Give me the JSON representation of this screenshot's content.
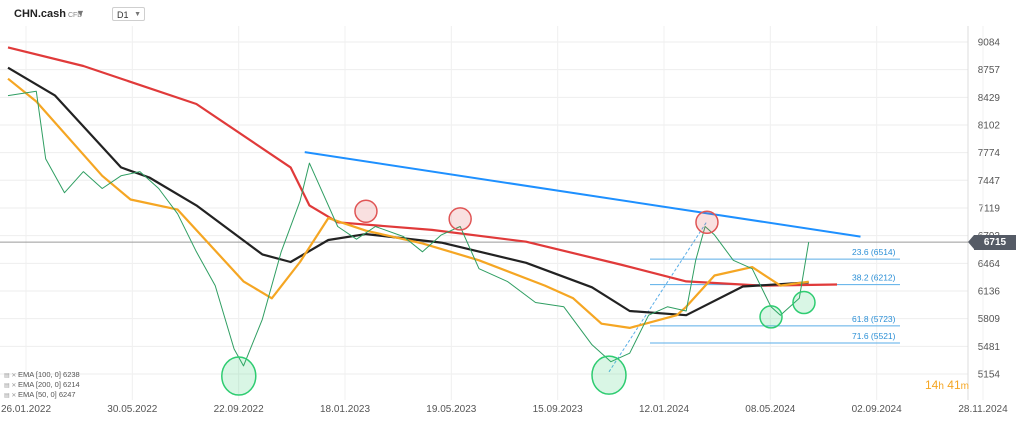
{
  "toolbar": {
    "symbol": "CHN.cash",
    "symbol_type": "CFD",
    "timeframe": "D1"
  },
  "current_price_label": "6715",
  "countdown": {
    "hours": "14",
    "h_unit": "h",
    "minutes": "41",
    "m_unit": "m"
  },
  "legend": [
    {
      "text": "EMA [100, 0] 6238",
      "color": "#222222"
    },
    {
      "text": "EMA [200, 0] 6214",
      "color": "#e03a3a"
    },
    {
      "text": "EMA [50, 0] 6247",
      "color": "#f5a623"
    }
  ],
  "chart_data": {
    "type": "line",
    "title": "",
    "xlabel": "",
    "ylabel": "",
    "x_ticks": [
      "26.01.2022",
      "30.05.2022",
      "22.09.2022",
      "18.01.2023",
      "19.05.2023",
      "15.09.2023",
      "12.01.2024",
      "08.05.2024",
      "02.09.2024",
      "28.11.2024"
    ],
    "y_ticks": [
      9084,
      8757,
      8429,
      8102,
      7774,
      7447,
      7119,
      6792,
      6464,
      6136,
      5809,
      5481,
      5154
    ],
    "ylim": [
      5000,
      9500
    ],
    "grid": true,
    "series": [
      {
        "name": "EMA [200, 0] 6214",
        "color": "#e03a3a",
        "points": [
          [
            0,
            9020
          ],
          [
            0.08,
            8800
          ],
          [
            0.2,
            8350
          ],
          [
            0.3,
            7600
          ],
          [
            0.32,
            7150
          ],
          [
            0.35,
            6950
          ],
          [
            0.45,
            6860
          ],
          [
            0.55,
            6720
          ],
          [
            0.65,
            6450
          ],
          [
            0.72,
            6250
          ],
          [
            0.8,
            6200
          ],
          [
            0.88,
            6214
          ]
        ]
      },
      {
        "name": "EMA [100, 0] 6238",
        "color": "#222222",
        "points": [
          [
            0,
            8780
          ],
          [
            0.05,
            8450
          ],
          [
            0.12,
            7600
          ],
          [
            0.15,
            7480
          ],
          [
            0.2,
            7150
          ],
          [
            0.27,
            6570
          ],
          [
            0.3,
            6480
          ],
          [
            0.34,
            6740
          ],
          [
            0.38,
            6810
          ],
          [
            0.46,
            6710
          ],
          [
            0.55,
            6470
          ],
          [
            0.62,
            6180
          ],
          [
            0.66,
            5900
          ],
          [
            0.72,
            5850
          ],
          [
            0.78,
            6190
          ],
          [
            0.85,
            6238
          ]
        ]
      },
      {
        "name": "EMA [50, 0] 6247",
        "color": "#f5a623",
        "points": [
          [
            0,
            8650
          ],
          [
            0.03,
            8380
          ],
          [
            0.1,
            7500
          ],
          [
            0.13,
            7220
          ],
          [
            0.18,
            7100
          ],
          [
            0.25,
            6250
          ],
          [
            0.28,
            6050
          ],
          [
            0.31,
            6480
          ],
          [
            0.34,
            7000
          ],
          [
            0.38,
            6850
          ],
          [
            0.44,
            6700
          ],
          [
            0.5,
            6500
          ],
          [
            0.57,
            6200
          ],
          [
            0.6,
            6050
          ],
          [
            0.63,
            5750
          ],
          [
            0.66,
            5700
          ],
          [
            0.71,
            5850
          ],
          [
            0.72,
            5950
          ],
          [
            0.75,
            6320
          ],
          [
            0.79,
            6420
          ],
          [
            0.82,
            6200
          ],
          [
            0.85,
            6247
          ]
        ]
      },
      {
        "name": "Price",
        "color": "#2f9e62",
        "points": [
          [
            0,
            8450
          ],
          [
            0.03,
            8500
          ],
          [
            0.04,
            7700
          ],
          [
            0.06,
            7300
          ],
          [
            0.08,
            7550
          ],
          [
            0.1,
            7350
          ],
          [
            0.12,
            7500
          ],
          [
            0.14,
            7550
          ],
          [
            0.16,
            7350
          ],
          [
            0.18,
            7050
          ],
          [
            0.2,
            6600
          ],
          [
            0.22,
            6200
          ],
          [
            0.24,
            5450
          ],
          [
            0.25,
            5250
          ],
          [
            0.27,
            5800
          ],
          [
            0.29,
            6600
          ],
          [
            0.31,
            7200
          ],
          [
            0.32,
            7650
          ],
          [
            0.33,
            7400
          ],
          [
            0.35,
            6900
          ],
          [
            0.37,
            6750
          ],
          [
            0.39,
            6900
          ],
          [
            0.42,
            6780
          ],
          [
            0.44,
            6600
          ],
          [
            0.46,
            6800
          ],
          [
            0.48,
            6900
          ],
          [
            0.5,
            6400
          ],
          [
            0.53,
            6250
          ],
          [
            0.56,
            6000
          ],
          [
            0.59,
            5950
          ],
          [
            0.62,
            5500
          ],
          [
            0.64,
            5300
          ],
          [
            0.66,
            5400
          ],
          [
            0.68,
            5850
          ],
          [
            0.7,
            5950
          ],
          [
            0.72,
            5900
          ],
          [
            0.73,
            6500
          ],
          [
            0.74,
            6900
          ],
          [
            0.75,
            6800
          ],
          [
            0.77,
            6500
          ],
          [
            0.79,
            6400
          ],
          [
            0.81,
            5950
          ],
          [
            0.82,
            5850
          ],
          [
            0.84,
            6050
          ],
          [
            0.85,
            6715
          ]
        ]
      }
    ],
    "trendline": {
      "from": [
        0.315,
        7780
      ],
      "to": [
        0.905,
        6780
      ],
      "color": "#1e90ff"
    },
    "fib_levels": [
      {
        "label": "23.6 (6514)",
        "value": 6514
      },
      {
        "label": "38.2 (6212)",
        "value": 6212
      },
      {
        "label": "61.8 (5723)",
        "value": 5723
      },
      {
        "label": "71.6 (5521)",
        "value": 5521
      }
    ],
    "current_price": 6715,
    "annotations": [
      {
        "kind": "ellipse",
        "color": "#2ecc71",
        "x": 0.245,
        "y": 5130
      },
      {
        "kind": "ellipse",
        "color": "#e05555",
        "x": 0.38,
        "y": 7080
      },
      {
        "kind": "ellipse",
        "color": "#e05555",
        "x": 0.48,
        "y": 6990
      },
      {
        "kind": "ellipse",
        "color": "#2ecc71",
        "x": 0.638,
        "y": 5140
      },
      {
        "kind": "ellipse",
        "color": "#e05555",
        "x": 0.742,
        "y": 6950
      },
      {
        "kind": "ellipse",
        "color": "#2ecc71",
        "x": 0.81,
        "y": 5830
      },
      {
        "kind": "ellipse",
        "color": "#2ecc71",
        "x": 0.845,
        "y": 6000
      }
    ]
  }
}
